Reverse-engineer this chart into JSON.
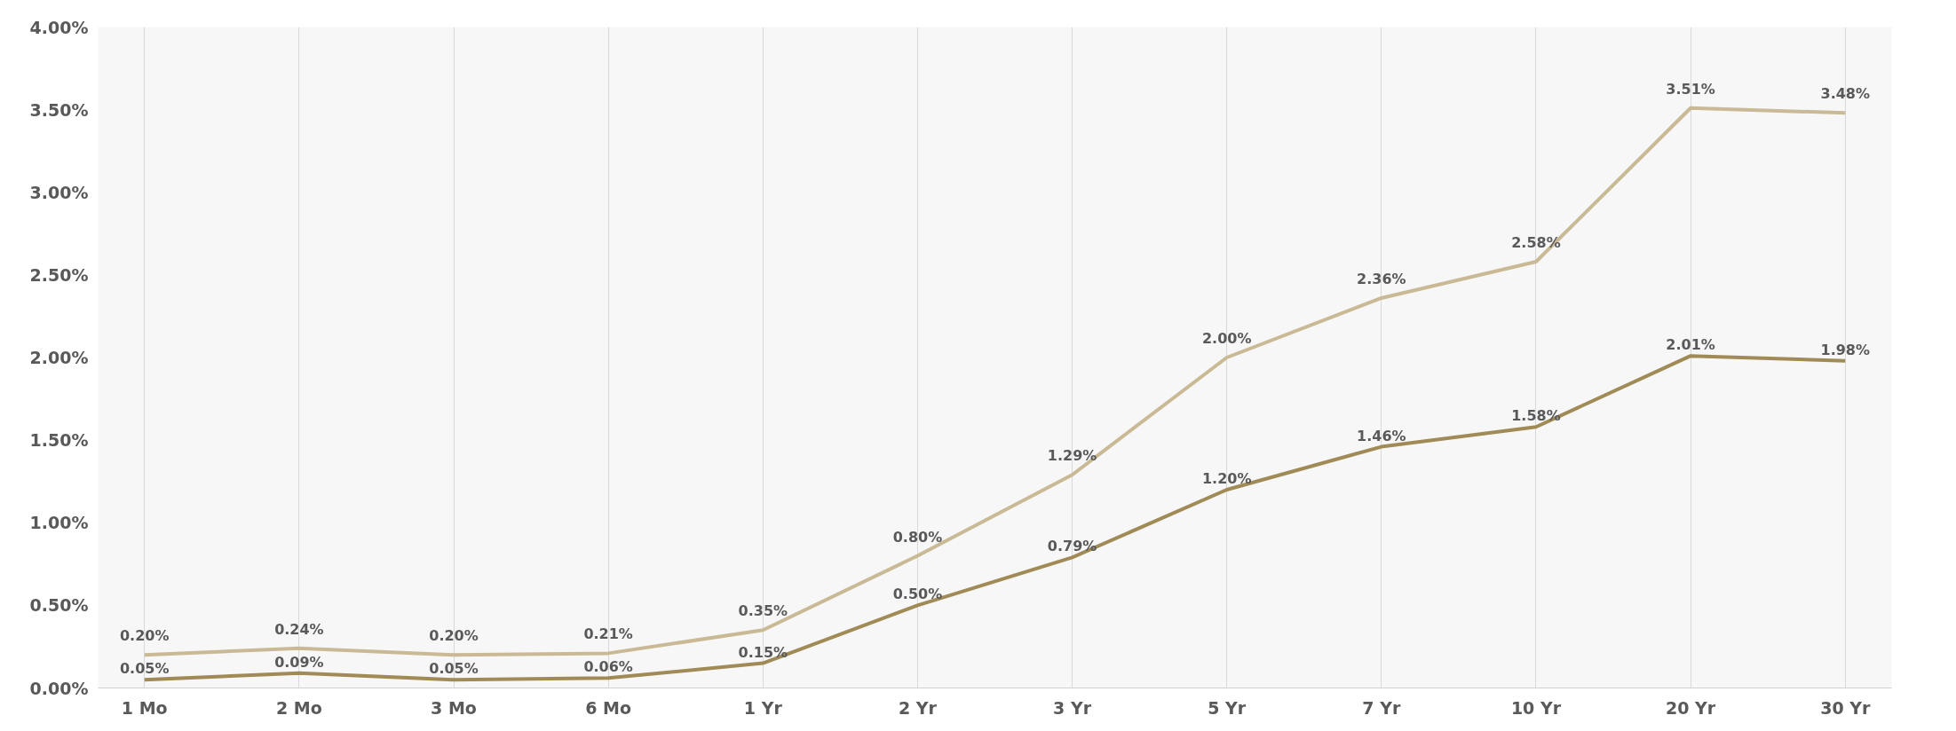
{
  "chart_data": {
    "type": "line",
    "categories": [
      "1 Mo",
      "2 Mo",
      "3 Mo",
      "6 Mo",
      "1 Yr",
      "2 Yr",
      "3 Yr",
      "5 Yr",
      "7 Yr",
      "10 Yr",
      "20 Yr",
      "30 Yr"
    ],
    "series": [
      {
        "color": "#c9b994",
        "values": [
          0.2,
          0.24,
          0.2,
          0.21,
          0.35,
          0.8,
          1.29,
          2.0,
          2.36,
          2.58,
          3.51,
          3.48
        ],
        "value_labels": [
          "0.20%",
          "0.24%",
          "0.20%",
          "0.21%",
          "0.35%",
          "0.80%",
          "1.29%",
          "2.00%",
          "2.36%",
          "2.58%",
          "3.51%",
          "3.48%"
        ]
      },
      {
        "color": "#a08a56",
        "values": [
          0.05,
          0.09,
          0.05,
          0.06,
          0.15,
          0.5,
          0.79,
          1.2,
          1.46,
          1.58,
          2.01,
          1.98
        ],
        "value_labels": [
          "0.05%",
          "0.09%",
          "0.05%",
          "0.06%",
          "0.15%",
          "0.50%",
          "0.79%",
          "1.20%",
          "1.46%",
          "1.58%",
          "2.01%",
          "1.98%"
        ]
      }
    ],
    "ylim": [
      0,
      4
    ],
    "yticks": [
      {
        "value": 0,
        "label": "0.00%"
      },
      {
        "value": 0.5,
        "label": "0.50%"
      },
      {
        "value": 1,
        "label": "1.00%"
      },
      {
        "value": 1.5,
        "label": "1.50%"
      },
      {
        "value": 2,
        "label": "2.00%"
      },
      {
        "value": 2.5,
        "label": "2.50%"
      },
      {
        "value": 3,
        "label": "3.00%"
      },
      {
        "value": 3.5,
        "label": "3.50%"
      },
      {
        "value": 4,
        "label": "4.00%"
      }
    ],
    "grid": "x",
    "marker": "none",
    "line_style": "solid"
  }
}
